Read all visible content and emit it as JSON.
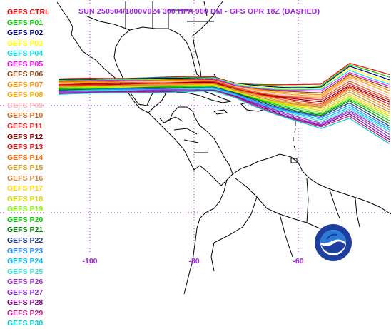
{
  "title": "SUN 250504/1800V024  300 HPA 960 DM - GFS OPR 18Z (DASHED)",
  "legend": [
    {
      "label": "GEFS CTRL",
      "color": "#ff0000"
    },
    {
      "label": "GEFS P01",
      "color": "#00cc00"
    },
    {
      "label": "GEFS P02",
      "color": "#000080"
    },
    {
      "label": "GEFS P03",
      "color": "#ffff00"
    },
    {
      "label": "GEFS P04",
      "color": "#00e5ee"
    },
    {
      "label": "GEFS P05",
      "color": "#ff00ff"
    },
    {
      "label": "GEFS P06",
      "color": "#8b4513"
    },
    {
      "label": "GEFS P07",
      "color": "#ff8c00"
    },
    {
      "label": "GEFS P08",
      "color": "#ffa500"
    },
    {
      "label": "GEFS P09",
      "color": "#ffb6c1"
    },
    {
      "label": "GEFS P10",
      "color": "#d2691e"
    },
    {
      "label": "GEFS P11",
      "color": "#ff2020"
    },
    {
      "label": "GEFS P12",
      "color": "#8b0000"
    },
    {
      "label": "GEFS P13",
      "color": "#dd1111"
    },
    {
      "label": "GEFS P14",
      "color": "#ff6600"
    },
    {
      "label": "GEFS P15",
      "color": "#d2a020"
    },
    {
      "label": "GEFS P16",
      "color": "#cd853f"
    },
    {
      "label": "GEFS P17",
      "color": "#ffd700"
    },
    {
      "label": "GEFS P18",
      "color": "#dada00"
    },
    {
      "label": "GEFS P19",
      "color": "#7fff00"
    },
    {
      "label": "GEFS P20",
      "color": "#00cd00"
    },
    {
      "label": "GEFS P21",
      "color": "#008000"
    },
    {
      "label": "GEFS P22",
      "color": "#1e3a8a"
    },
    {
      "label": "GEFS P23",
      "color": "#1e90ff"
    },
    {
      "label": "GEFS P24",
      "color": "#00bfff"
    },
    {
      "label": "GEFS P25",
      "color": "#40e0d0"
    },
    {
      "label": "GEFS P26",
      "color": "#9932cc"
    },
    {
      "label": "GEFS P27",
      "color": "#8a2be2"
    },
    {
      "label": "GEFS P28",
      "color": "#800080"
    },
    {
      "label": "GEFS P29",
      "color": "#c71585"
    },
    {
      "label": "GEFS P30",
      "color": "#00ced1"
    }
  ],
  "longitude_labels": [
    {
      "label": "-100",
      "lon": -100
    },
    {
      "label": "-80",
      "lon": -80
    },
    {
      "label": "-60",
      "lon": -60
    }
  ],
  "colors": {
    "title": "#a020f0",
    "gridlines": "#a020f0",
    "coastlines": "#000000",
    "background": "#ffffff"
  },
  "logo": "noaa-logo"
}
